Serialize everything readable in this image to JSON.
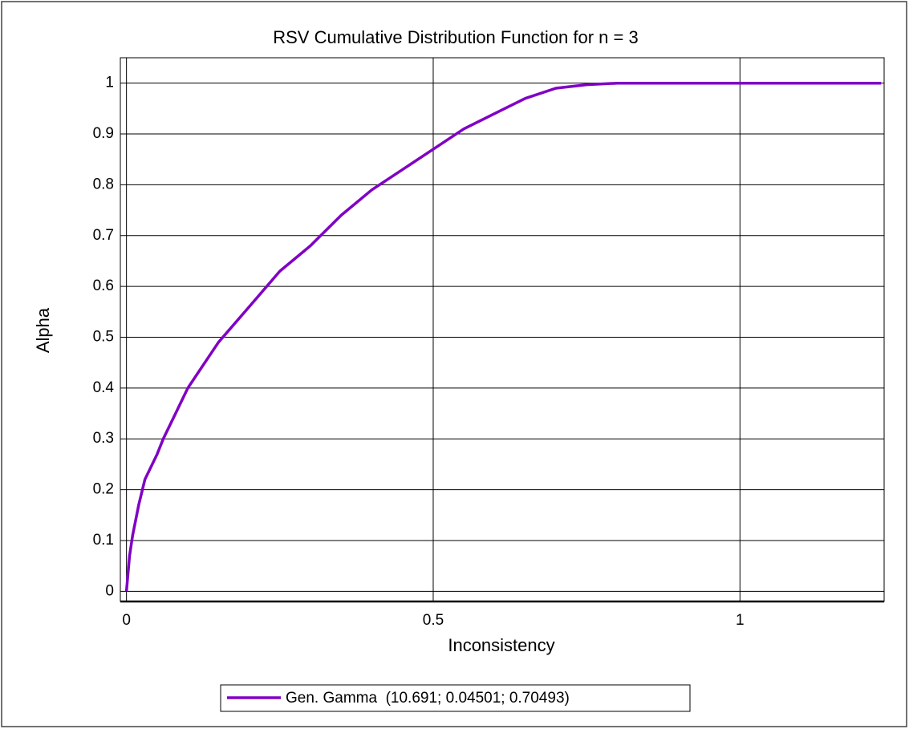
{
  "chart_data": {
    "type": "line",
    "title": "RSV Cumulative Distribution Function for n = 3",
    "xlabel": "Inconsistency",
    "ylabel": "Alpha",
    "x": [
      0,
      0.005,
      0.01,
      0.02,
      0.03,
      0.05,
      0.06,
      0.08,
      0.1,
      0.15,
      0.2,
      0.25,
      0.3,
      0.35,
      0.4,
      0.45,
      0.5,
      0.55,
      0.6,
      0.65,
      0.7,
      0.75,
      0.8,
      1.0,
      1.23
    ],
    "series": [
      {
        "name": "Gen. Gamma  (10.691; 0.04501; 0.70493)",
        "color": "#8000c4",
        "values": [
          0,
          0.07,
          0.11,
          0.17,
          0.22,
          0.27,
          0.3,
          0.35,
          0.4,
          0.49,
          0.56,
          0.63,
          0.68,
          0.74,
          0.79,
          0.83,
          0.87,
          0.91,
          0.94,
          0.97,
          0.99,
          0.997,
          1,
          1,
          1
        ]
      }
    ],
    "xlim": [
      -0.01,
      1.235
    ],
    "ylim": [
      -0.02,
      1.05
    ],
    "xticks": [
      0,
      0.5,
      1
    ],
    "yticks": [
      0,
      0.1,
      0.2,
      0.3,
      0.4,
      0.5,
      0.6,
      0.7,
      0.8,
      0.9,
      1
    ],
    "grid": true,
    "legend": "bottom"
  }
}
